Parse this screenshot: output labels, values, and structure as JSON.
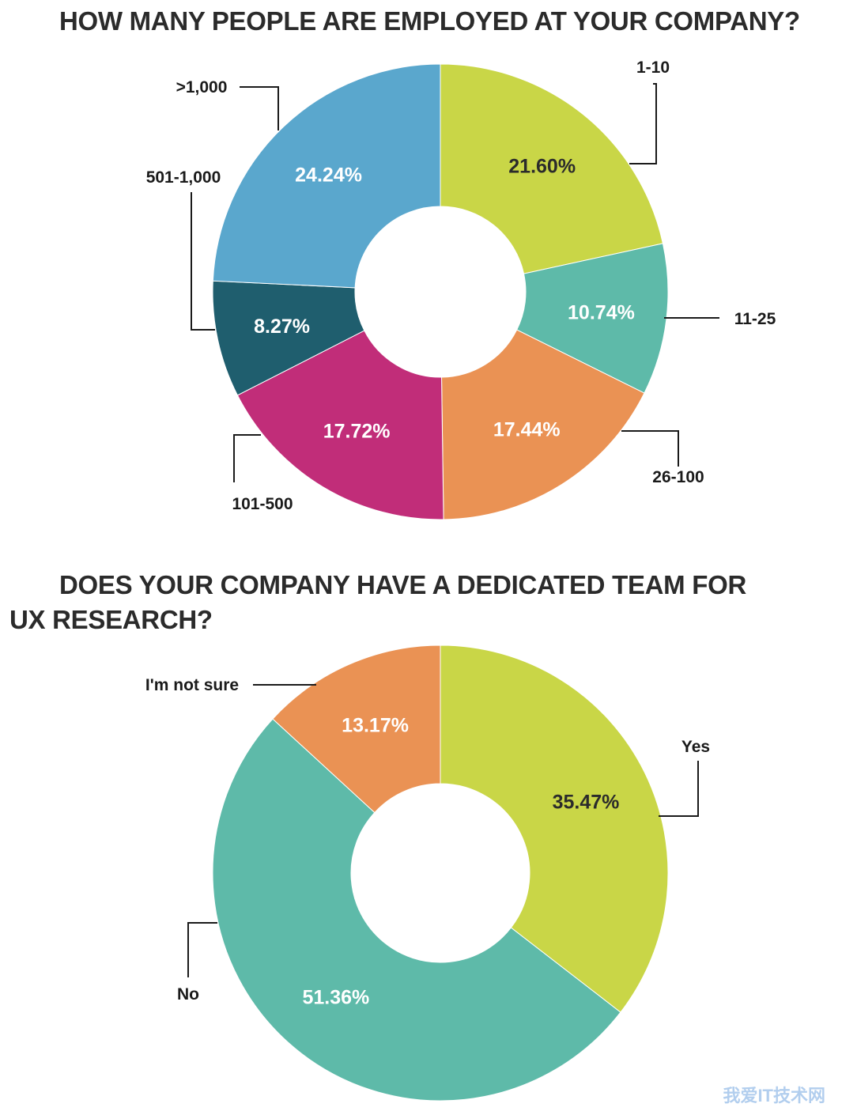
{
  "titles": {
    "chart1": "HOW MANY PEOPLE ARE EMPLOYED AT YOUR COMPANY?",
    "chart2_line1": "DOES YOUR COMPANY HAVE A DEDICATED TEAM FOR",
    "chart2_line2": "UX RESEARCH?"
  },
  "watermark": "我爱IT技术网",
  "chart_data": [
    {
      "type": "pie",
      "title": "HOW MANY PEOPLE ARE EMPLOYED AT YOUR COMPANY?",
      "categories": [
        "1-10",
        "11-25",
        "26-100",
        "101-500",
        "501-1,000",
        ">1,000"
      ],
      "values": [
        21.6,
        10.74,
        17.44,
        17.72,
        8.27,
        24.24
      ],
      "value_labels": [
        "21.60%",
        "10.74%",
        "17.44%",
        "17.72%",
        "8.27%",
        "24.24%"
      ],
      "colors": [
        "#c9d647",
        "#5ebaa9",
        "#ea9254",
        "#c12d79",
        "#1f5e6e",
        "#5aa7cd"
      ],
      "label_colors": [
        "#2b2b2b",
        "#ffffff",
        "#ffffff",
        "#ffffff",
        "#ffffff",
        "#ffffff"
      ],
      "donut": true
    },
    {
      "type": "pie",
      "title": "DOES YOUR COMPANY HAVE A DEDICATED TEAM FOR UX RESEARCH?",
      "categories": [
        "Yes",
        "No",
        "I'm not sure"
      ],
      "values": [
        35.47,
        51.36,
        13.17
      ],
      "value_labels": [
        "35.47%",
        "51.36%",
        "13.17%"
      ],
      "colors": [
        "#c9d647",
        "#5ebaa9",
        "#ea9254"
      ],
      "label_colors": [
        "#2b2b2b",
        "#ffffff",
        "#ffffff"
      ],
      "donut": true
    }
  ]
}
